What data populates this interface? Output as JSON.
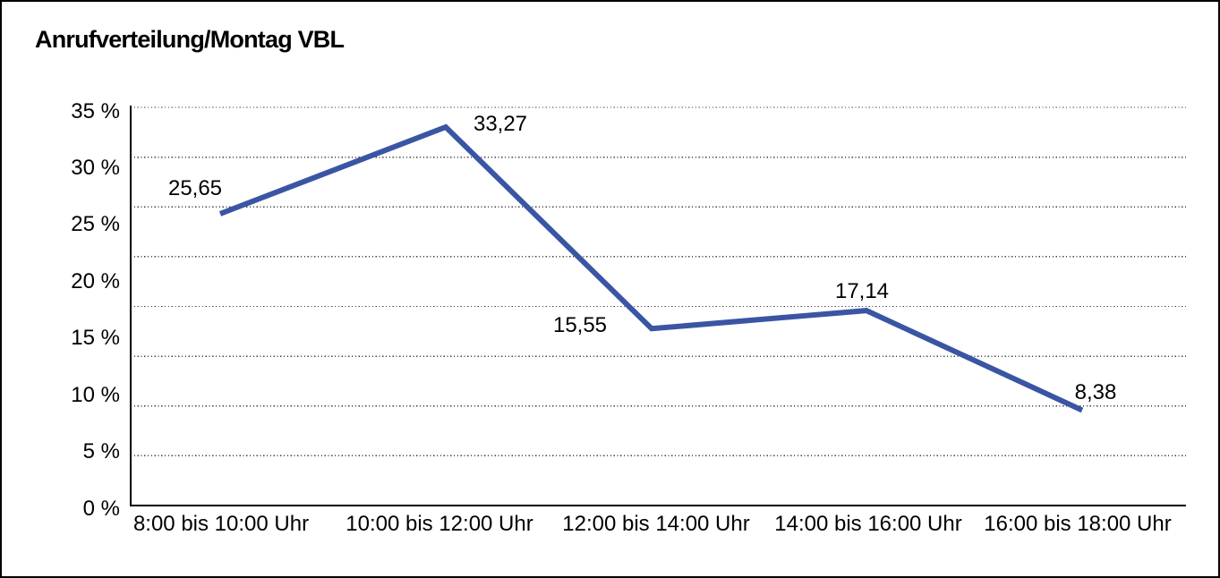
{
  "title": "Anrufverteilung/Montag VBL",
  "colors": {
    "line": "#3A55A3",
    "axis": "#000000",
    "gridline_dots": "#3F3F3F",
    "text": "#000000",
    "background": "#FFFFFF",
    "frame_border": "#000000"
  },
  "chart_data": {
    "type": "line",
    "title": "Anrufverteilung/Montag VBL",
    "categories": [
      "8:00 bis 10:00 Uhr",
      "10:00 bis 12:00 Uhr",
      "12:00 bis 14:00 Uhr",
      "14:00 bis 16:00 Uhr",
      "16:00 bis 18:00 Uhr"
    ],
    "values": [
      25.65,
      33.27,
      15.55,
      17.14,
      8.38
    ],
    "data_labels": [
      "25,65",
      "33,27",
      "15,55",
      "17,14",
      "8,38"
    ],
    "y_ticks": [
      "35 %",
      "30 %",
      "25 %",
      "20 %",
      "15 %",
      "10 %",
      "5 %",
      "0 %"
    ],
    "ylim": [
      0,
      35
    ],
    "xlabel": "",
    "ylabel": "",
    "legend": "none",
    "grid": "horizontal-dotted",
    "line_style": "solid-thick-no-markers"
  }
}
